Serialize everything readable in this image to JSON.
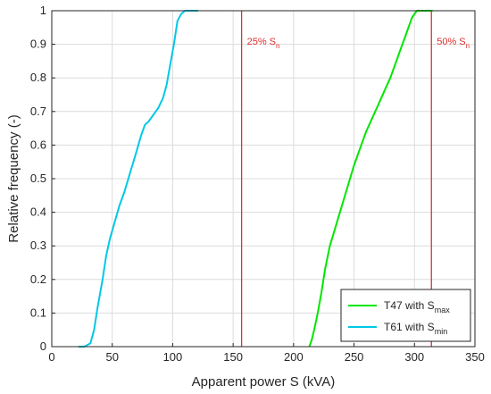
{
  "chart_data": {
    "type": "line",
    "xlabel": "Apparent power S (kVA)",
    "ylabel": "Relative frequency (-)",
    "xlim": [
      0,
      350
    ],
    "ylim": [
      0,
      1
    ],
    "xticks": [
      0,
      50,
      100,
      150,
      200,
      250,
      300,
      350
    ],
    "yticks": [
      0,
      0.1,
      0.2,
      0.3,
      0.4,
      0.5,
      0.6,
      0.7,
      0.8,
      0.9,
      1
    ],
    "grid": true,
    "legend_position": "bottom-right",
    "series": [
      {
        "label_main": "T47 with S",
        "label_sub": "max",
        "color": "#00e600",
        "x": [
          213,
          215,
          217,
          220,
          223,
          226,
          230,
          235,
          240,
          245,
          250,
          255,
          260,
          265,
          270,
          275,
          280,
          285,
          288,
          292,
          295,
          298,
          302,
          306,
          310,
          315
        ],
        "y": [
          0,
          0.02,
          0.05,
          0.1,
          0.16,
          0.23,
          0.3,
          0.36,
          0.42,
          0.48,
          0.54,
          0.59,
          0.64,
          0.68,
          0.72,
          0.76,
          0.8,
          0.85,
          0.88,
          0.92,
          0.95,
          0.98,
          1.0,
          1.0,
          1.0,
          1.0
        ]
      },
      {
        "label_main": "T61 with S",
        "label_sub": "min",
        "color": "#00c8e6",
        "x": [
          22,
          27,
          32,
          35,
          38,
          42,
          45,
          48,
          52,
          56,
          60,
          65,
          70,
          74,
          77,
          80,
          84,
          88,
          92,
          95,
          98,
          101,
          104,
          107,
          110,
          113,
          117,
          121
        ],
        "y": [
          0,
          0,
          0.01,
          0.05,
          0.12,
          0.2,
          0.27,
          0.32,
          0.37,
          0.42,
          0.46,
          0.52,
          0.58,
          0.63,
          0.66,
          0.67,
          0.69,
          0.71,
          0.74,
          0.78,
          0.84,
          0.9,
          0.97,
          0.99,
          1.0,
          1.0,
          1.0,
          1.0
        ]
      }
    ],
    "reference_lines": [
      {
        "x": 157,
        "label_main": "25% S",
        "label_sub": "n",
        "color": "#e03030"
      },
      {
        "x": 314,
        "label_main": "50% S",
        "label_sub": "n",
        "color": "#e03030"
      }
    ]
  }
}
